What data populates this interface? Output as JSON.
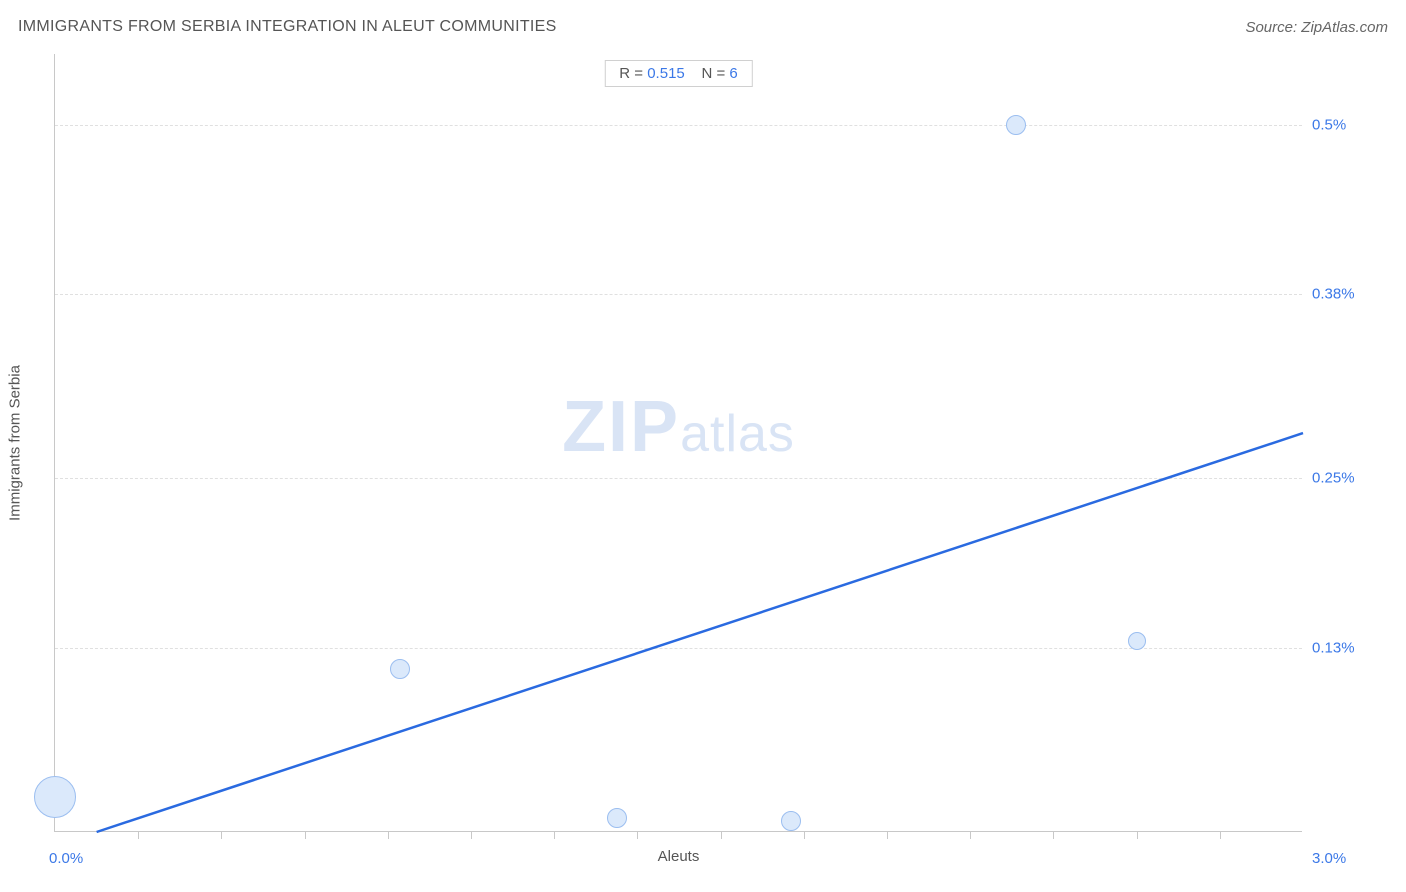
{
  "header": {
    "title": "IMMIGRANTS FROM SERBIA INTEGRATION IN ALEUT COMMUNITIES",
    "source": "Source: ZipAtlas.com"
  },
  "chart": {
    "type": "scatter",
    "xlabel": "Aleuts",
    "ylabel": "Immigrants from Serbia",
    "xlim": [
      0.0,
      3.0
    ],
    "ylim": [
      0.0,
      0.55
    ],
    "x_axis_labels": {
      "min": "0.0%",
      "max": "3.0%"
    },
    "y_ticks": [
      {
        "value": 0.13,
        "label": "0.13%"
      },
      {
        "value": 0.25,
        "label": "0.25%"
      },
      {
        "value": 0.38,
        "label": "0.38%"
      },
      {
        "value": 0.5,
        "label": "0.5%"
      }
    ],
    "x_minor_ticks": [
      0.2,
      0.4,
      0.6,
      0.8,
      1.0,
      1.2,
      1.4,
      1.6,
      1.8,
      2.0,
      2.2,
      2.4,
      2.6,
      2.8
    ],
    "points": [
      {
        "x": 0.0,
        "y": 0.025,
        "size": 42
      },
      {
        "x": 0.83,
        "y": 0.115,
        "size": 20
      },
      {
        "x": 1.35,
        "y": 0.01,
        "size": 20
      },
      {
        "x": 1.77,
        "y": 0.008,
        "size": 20
      },
      {
        "x": 2.31,
        "y": 0.5,
        "size": 20
      },
      {
        "x": 2.6,
        "y": 0.135,
        "size": 18
      }
    ],
    "trend_line": {
      "x1": 0.1,
      "y1": 0.0,
      "x2": 3.0,
      "y2": 0.282,
      "color": "#2a6ae0",
      "width": 2.5
    },
    "legend": {
      "r_label": "R =",
      "r_value": "0.515",
      "n_label": "N =",
      "n_value": "6"
    },
    "background_color": "#ffffff",
    "grid_color": "#e0e0e0",
    "bubble_fill": "#dbe9fb",
    "bubble_stroke": "#9bbef0",
    "watermark": {
      "zip": "ZIP",
      "atlas": "atlas"
    }
  }
}
